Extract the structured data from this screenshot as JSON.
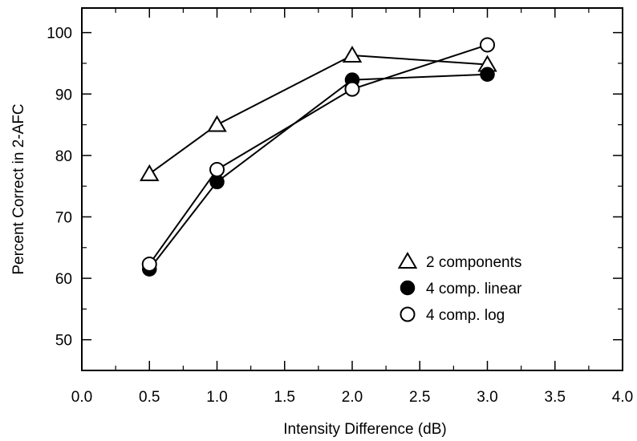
{
  "chart_data": {
    "type": "line",
    "xlabel": "Intensity Difference (dB)",
    "ylabel": "Percent Correct in 2-AFC",
    "xlim": [
      0.0,
      4.0
    ],
    "ylim": [
      45,
      104
    ],
    "xticks": [
      0.0,
      0.5,
      1.0,
      1.5,
      2.0,
      2.5,
      3.0,
      3.5,
      4.0
    ],
    "xtick_labels": [
      "0.0",
      "0.5",
      "1.0",
      "1.5",
      "2.0",
      "2.5",
      "3.0",
      "3.5",
      "4.0"
    ],
    "yticks": [
      50,
      60,
      70,
      80,
      90,
      100
    ],
    "ytick_labels": [
      "50",
      "60",
      "70",
      "80",
      "90",
      "100"
    ],
    "grid": false,
    "legend_position": "lower-right",
    "series": [
      {
        "name": "2 components",
        "marker": "open-triangle",
        "x": [
          0.5,
          1.0,
          2.0,
          3.0
        ],
        "y": [
          77,
          85,
          96.3,
          94.8
        ]
      },
      {
        "name": "4 comp. linear",
        "marker": "filled-circle",
        "x": [
          0.5,
          1.0,
          2.0,
          3.0
        ],
        "y": [
          61.5,
          75.7,
          92.3,
          93.2
        ]
      },
      {
        "name": "4 comp. log",
        "marker": "open-circle",
        "x": [
          0.5,
          1.0,
          2.0,
          3.0
        ],
        "y": [
          62.3,
          77.7,
          90.8,
          98
        ]
      }
    ],
    "colors": {
      "line": "#000000",
      "marker": "#000000",
      "background": "#ffffff"
    }
  }
}
